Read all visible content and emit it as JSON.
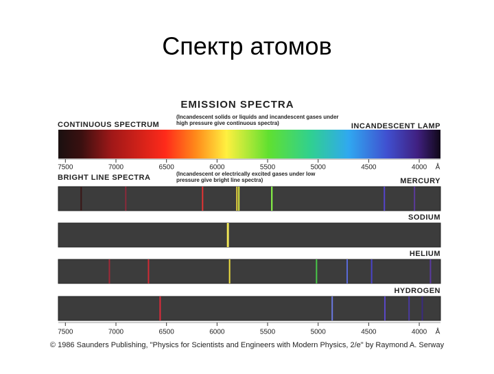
{
  "title": "Спектр атомов",
  "figure": {
    "title": "EMISSION SPECTRA",
    "continuous": {
      "label": "CONTINUOUS SPECTRUM",
      "note": "(Incandescent solids or liquids and incandescent gases under high pressure give continuous spectra)",
      "source": "INCANDESCENT LAMP"
    },
    "bright": {
      "label": "BRIGHT LINE SPECTRA",
      "note": "(Incandescent or electrically excited gases under low pressure give bright line spectra)"
    },
    "xlim": [
      7570,
      3790
    ],
    "xticks": [
      7500,
      7000,
      6500,
      6000,
      5500,
      5000,
      4500,
      4000
    ],
    "unit": "Å",
    "spectra": [
      {
        "name": "MERCURY",
        "lines": [
          7344,
          6903,
          6143,
          5804,
          5784,
          5458,
          4345,
          4047
        ],
        "colors": [
          "#3a1616",
          "#8a2a3a",
          "#e23434",
          "#e6cf3c",
          "#d8e640",
          "#8cff48",
          "#5544cc",
          "#5a3a9a"
        ]
      },
      {
        "name": "SODIUM",
        "lines": [
          5896,
          5890
        ],
        "colors": [
          "#f0e040",
          "#f6ee60"
        ]
      },
      {
        "name": "HELIUM",
        "lines": [
          7065,
          6678,
          5876,
          5016,
          4713,
          4471,
          3889
        ],
        "colors": [
          "#a02838",
          "#d02a34",
          "#f0e040",
          "#48c848",
          "#5a6ad8",
          "#4a44c8",
          "#5a3aa0"
        ]
      },
      {
        "name": "HYDROGEN",
        "lines": [
          6563,
          4861,
          4340,
          4101,
          3970
        ],
        "colors": [
          "#e02a3a",
          "#6a78e0",
          "#5a48c8",
          "#4a3aa0",
          "#3a2a80"
        ]
      }
    ]
  },
  "credit": "© 1986 Saunders Publishing, \"Physics for Scientists and Engineers with Modern Physics, 2/e\" by Raymond A. Serway"
}
